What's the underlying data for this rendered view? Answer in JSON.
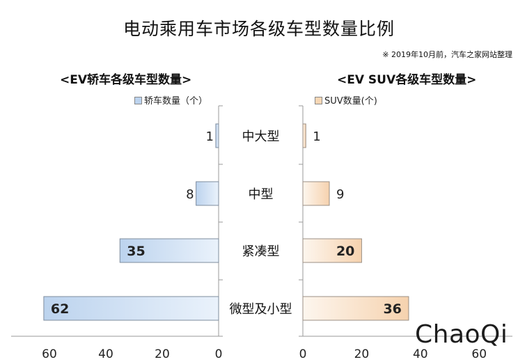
{
  "title": "电动乘用车市场各级车型数量比例",
  "note": "※ 2019年10月前，汽车之家网站整理",
  "watermark": "ChaoQi",
  "colors": {
    "sedan_light": "#e4eef9",
    "sedan_dark": "#bcd3ee",
    "sedan_edge": "#7e8c9e",
    "suv_light": "#fef4ea",
    "suv_dark": "#f7d7b5",
    "suv_edge": "#9b8f84",
    "axis": "#999999"
  },
  "chart_data": [
    {
      "type": "bar",
      "orientation": "horizontal",
      "title": "<EV轿车各级车型数量>",
      "categories": [
        "中大型",
        "中型",
        "紧凑型",
        "微型及小型"
      ],
      "series": [
        {
          "name": "轿车数量（个）",
          "values": [
            1,
            8,
            35,
            62
          ]
        }
      ],
      "xlim": [
        0,
        70
      ],
      "x_ticks": [
        "0",
        "20",
        "40",
        "60"
      ],
      "x_reversed": true,
      "legend_position": "top-right"
    },
    {
      "type": "bar",
      "orientation": "horizontal",
      "title": "<EV SUV各级车型数量>",
      "categories": [
        "中大型",
        "中型",
        "紧凑型",
        "微型及小型"
      ],
      "series": [
        {
          "name": "SUV数量(个)",
          "values": [
            1,
            9,
            20,
            36
          ]
        }
      ],
      "xlim": [
        0,
        70
      ],
      "x_ticks": [
        "0",
        "20",
        "40",
        "60"
      ],
      "x_reversed": false,
      "legend_position": "top-left"
    }
  ]
}
